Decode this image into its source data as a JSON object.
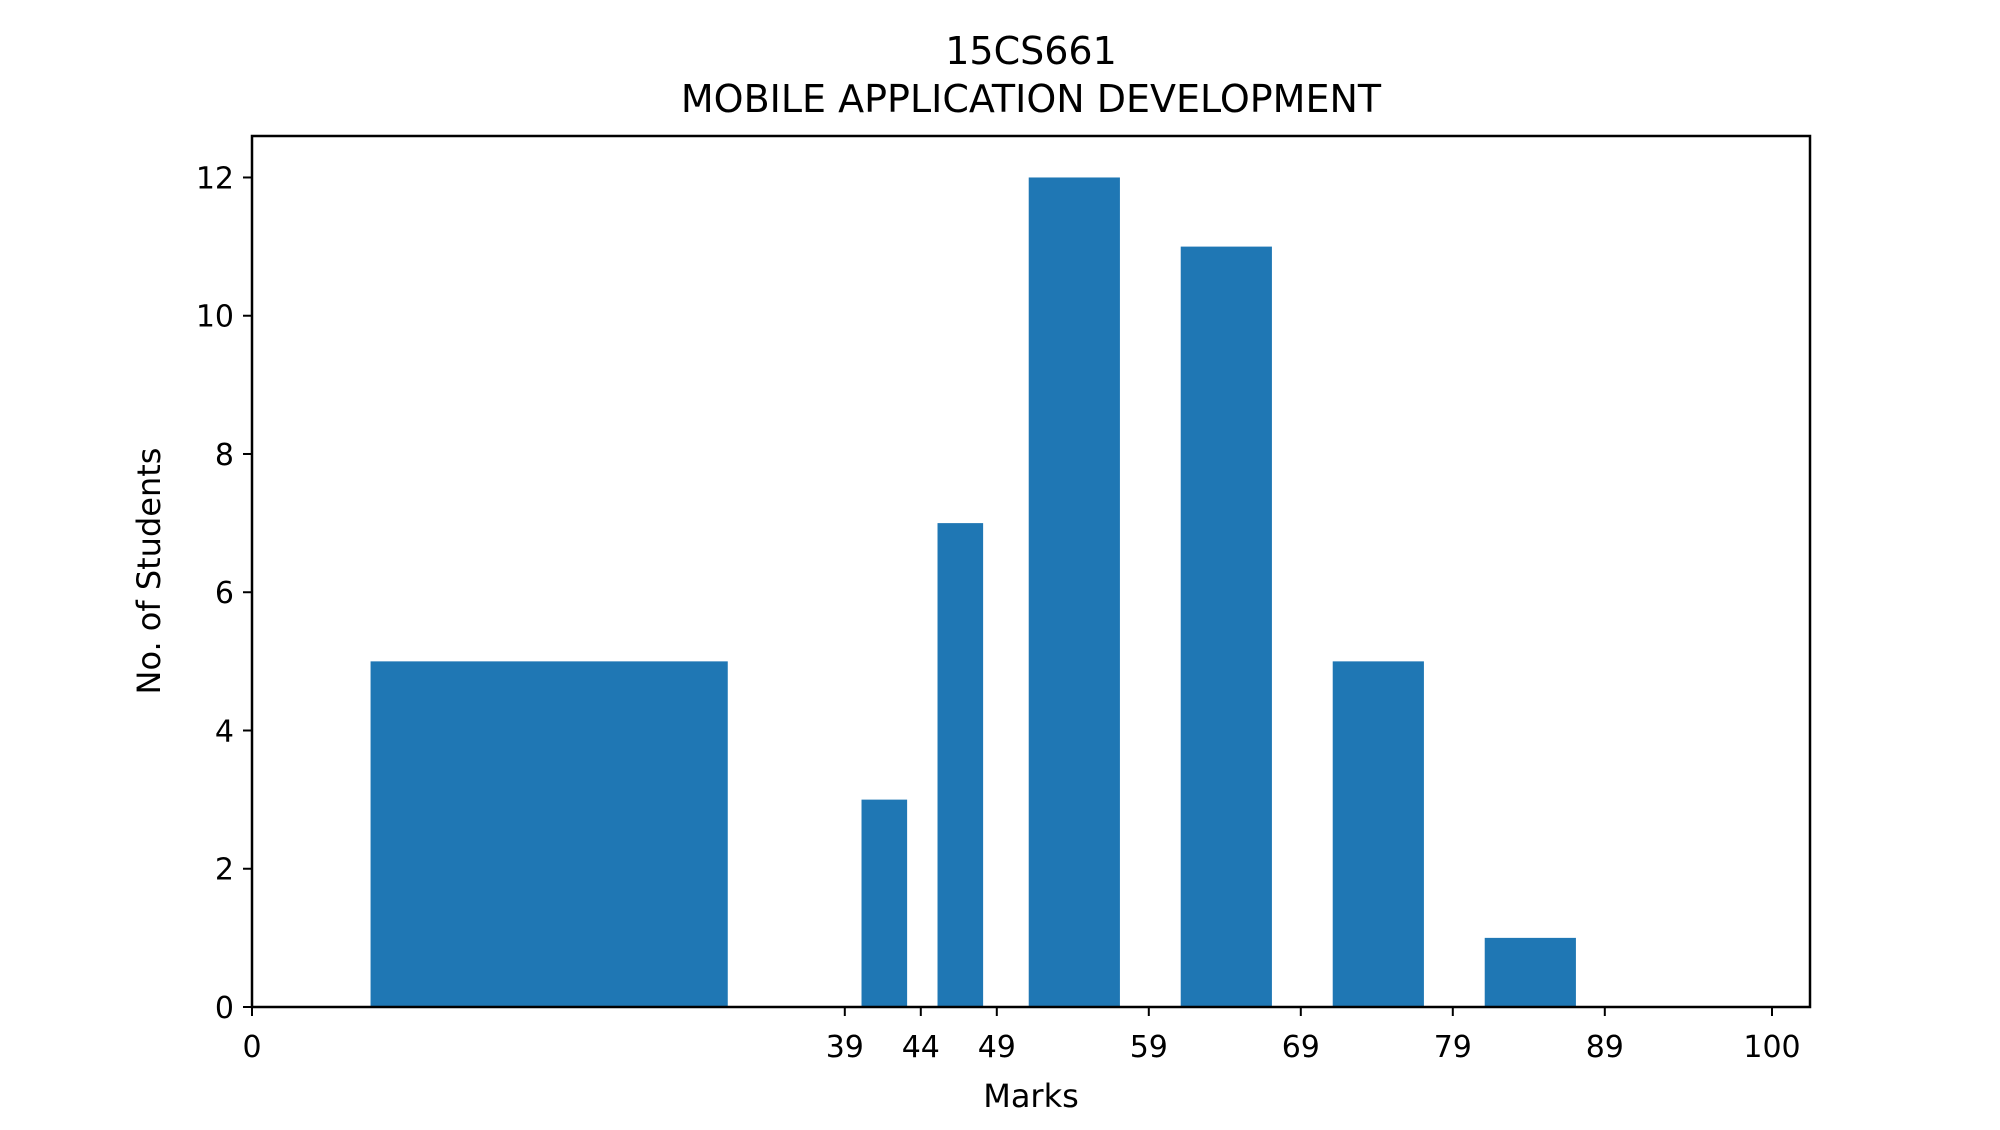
{
  "chart_data": {
    "type": "bar",
    "title": "15CS661",
    "subtitle": "MOBILE APPLICATION DEVELOPMENT",
    "xlabel": "Marks",
    "ylabel": "No. of Students",
    "xlim": [
      0,
      102.5
    ],
    "ylim": [
      0,
      12.6
    ],
    "x_ticks": [
      0,
      39,
      44,
      49,
      59,
      69,
      79,
      89,
      100
    ],
    "y_ticks": [
      0,
      2,
      4,
      6,
      8,
      10,
      12
    ],
    "grid": false,
    "legend": "none",
    "bar_color": "#1f77b4",
    "bars": [
      {
        "x_start": 7.8,
        "x_end": 31.3,
        "value": 5
      },
      {
        "x_start": 40.1,
        "x_end": 43.1,
        "value": 3
      },
      {
        "x_start": 45.1,
        "x_end": 48.1,
        "value": 7
      },
      {
        "x_start": 51.1,
        "x_end": 57.1,
        "value": 12
      },
      {
        "x_start": 61.1,
        "x_end": 67.1,
        "value": 11
      },
      {
        "x_start": 71.1,
        "x_end": 77.1,
        "value": 5
      },
      {
        "x_start": 81.1,
        "x_end": 87.1,
        "value": 1
      }
    ]
  }
}
